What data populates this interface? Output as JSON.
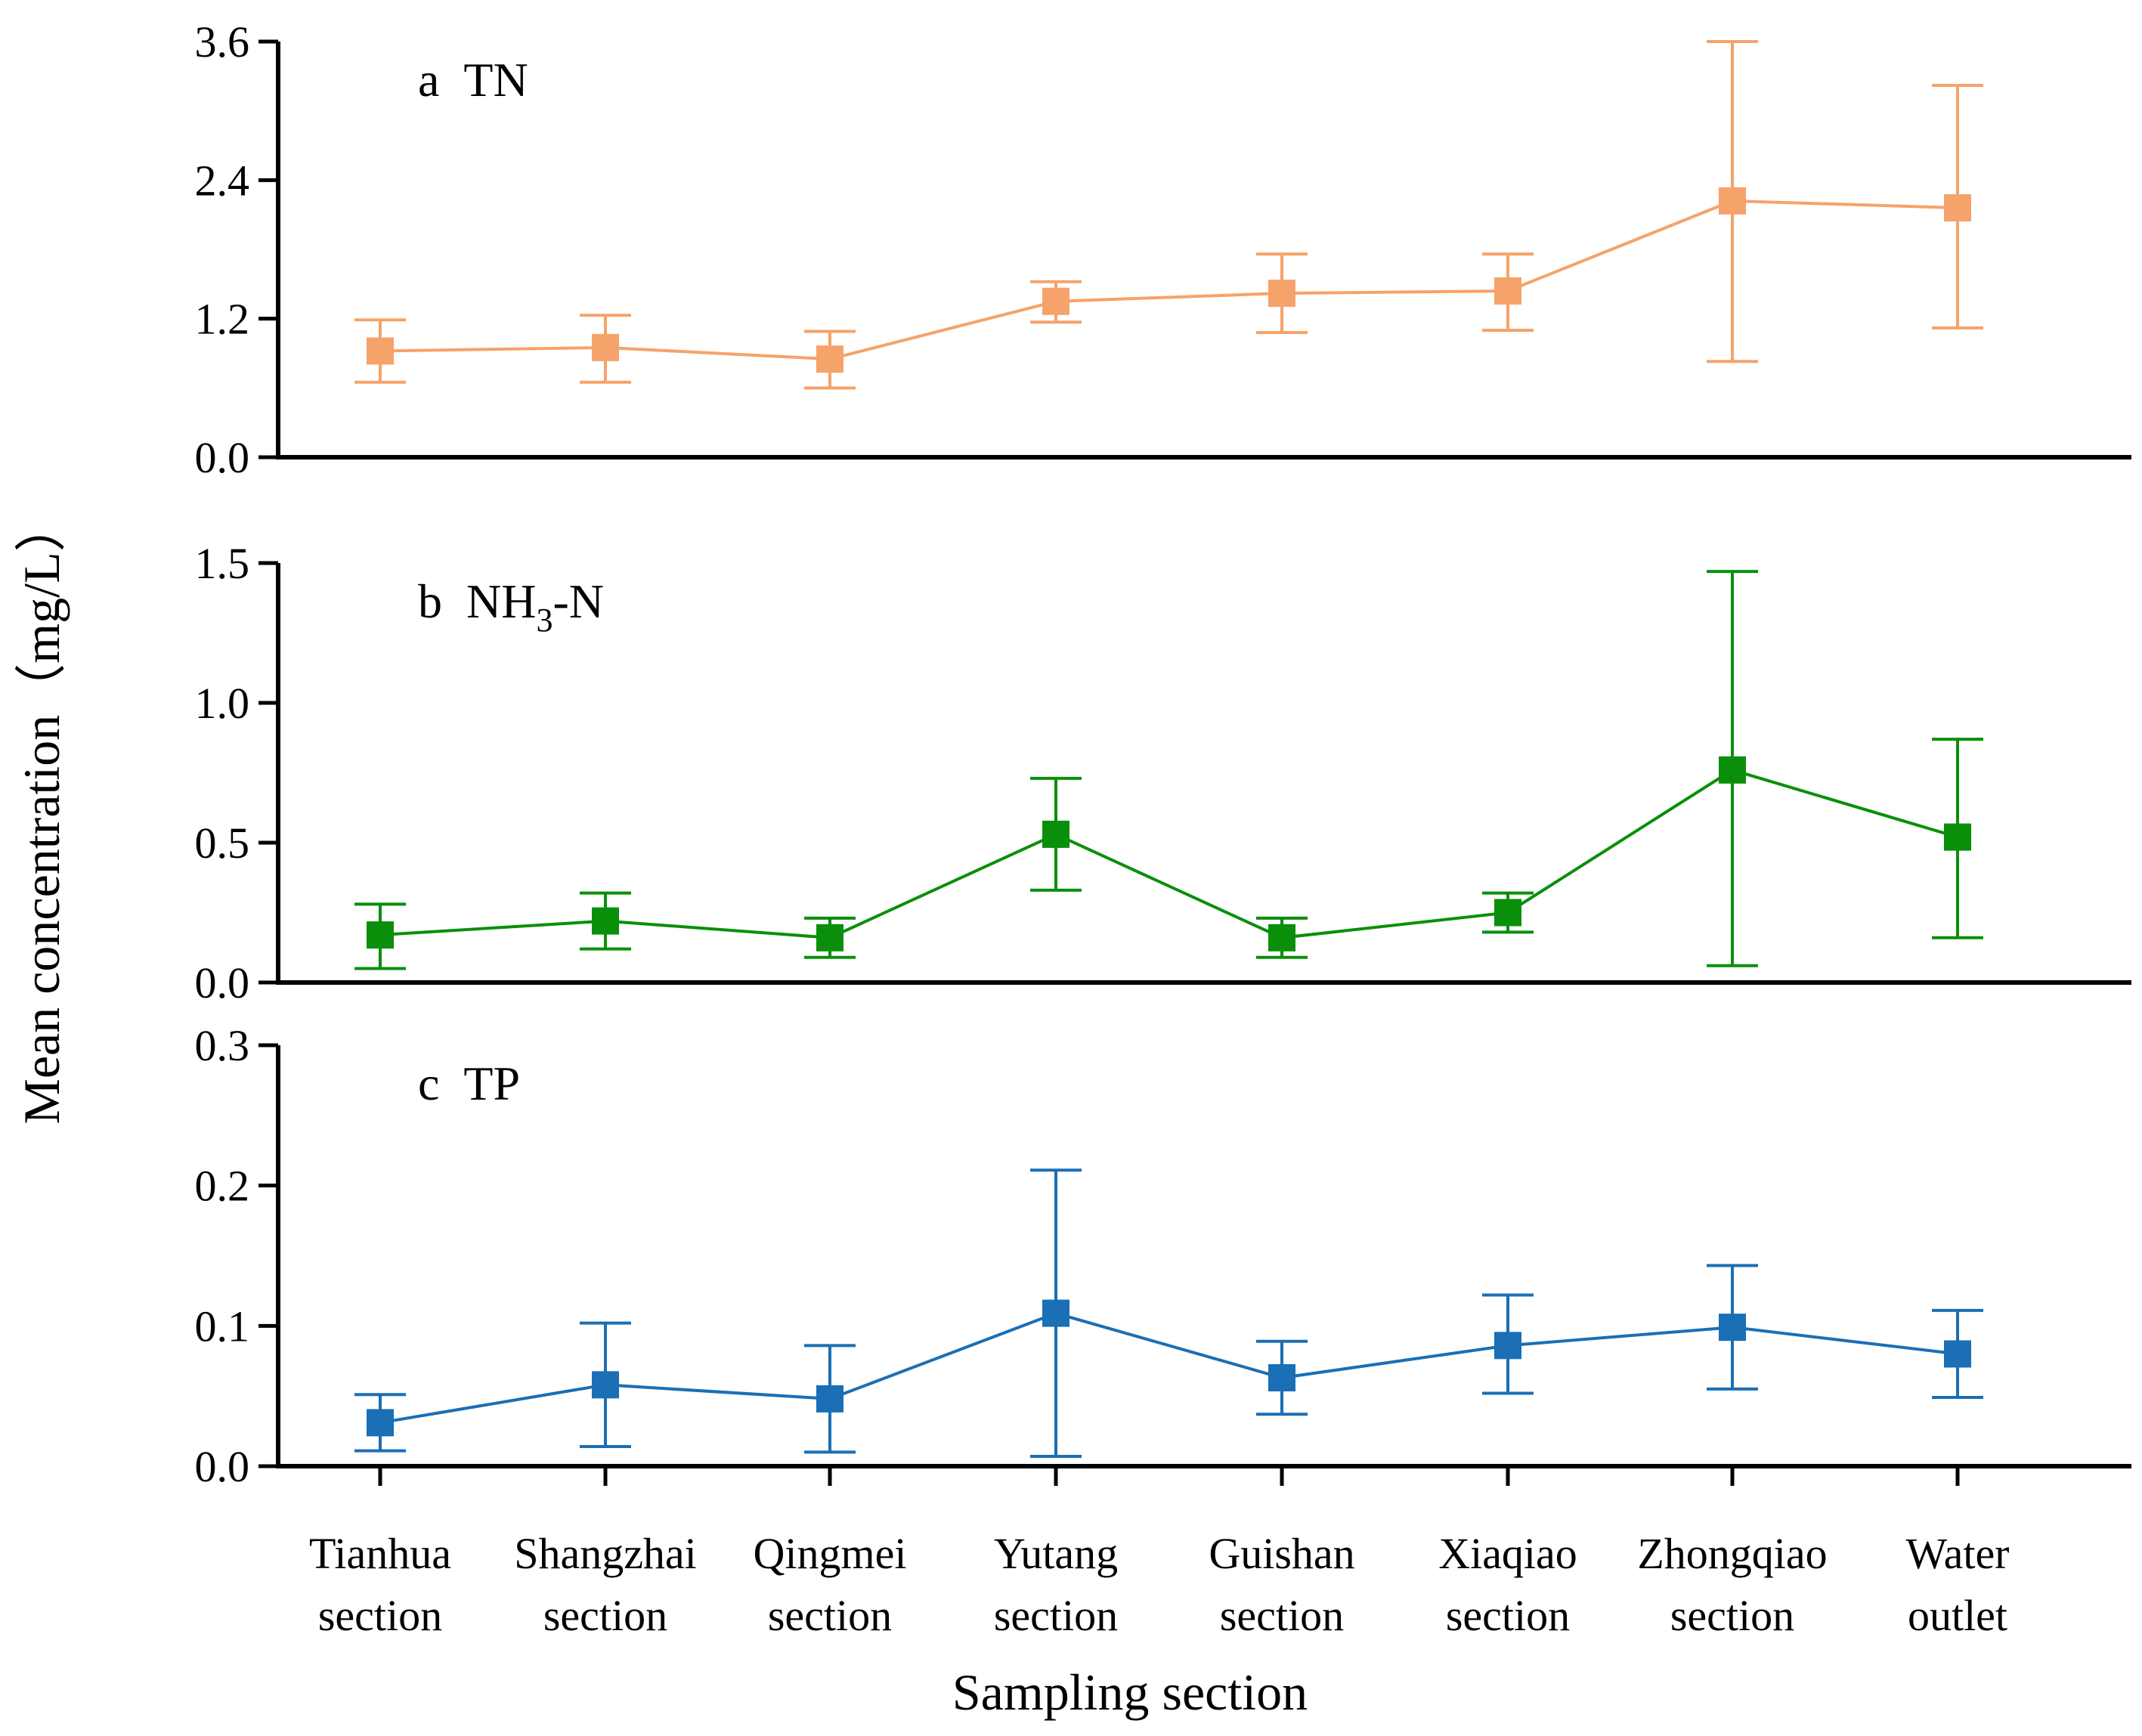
{
  "chart_data": {
    "type": "line",
    "ylabel": "Mean concentration（mg/L）",
    "xlabel": "Sampling section",
    "categories": [
      [
        "Tianhua",
        "section"
      ],
      [
        "Shangzhai",
        "section"
      ],
      [
        "Qingmei",
        "section"
      ],
      [
        "Yutang",
        "section"
      ],
      [
        "Guishan",
        "section"
      ],
      [
        "Xiaqiao",
        "section"
      ],
      [
        "Zhongqiao",
        "section"
      ],
      [
        "Water",
        "outlet"
      ]
    ],
    "panels": [
      {
        "id": "a",
        "title_letter": "a",
        "title_main": "TN",
        "title_sub": "",
        "title_suffix": "",
        "color": "#F5A36A",
        "ylim": [
          0,
          3.6
        ],
        "yticks": [
          "0.0",
          "1.2",
          "2.4",
          "3.6"
        ],
        "values": [
          0.92,
          0.95,
          0.85,
          1.35,
          1.42,
          1.44,
          2.22,
          2.16
        ],
        "err_low": [
          0.65,
          0.65,
          0.6,
          1.17,
          1.08,
          1.1,
          0.83,
          1.12
        ],
        "err_high": [
          1.19,
          1.23,
          1.09,
          1.52,
          1.76,
          1.76,
          3.6,
          3.22
        ]
      },
      {
        "id": "b",
        "title_letter": "b",
        "title_main": "NH",
        "title_sub": "3",
        "title_suffix": "-N",
        "color": "#0A8F0A",
        "ylim": [
          0,
          1.5
        ],
        "yticks": [
          "0.0",
          "0.5",
          "1.0",
          "1.5"
        ],
        "values": [
          0.17,
          0.22,
          0.16,
          0.53,
          0.16,
          0.25,
          0.76,
          0.52
        ],
        "err_low": [
          0.05,
          0.12,
          0.09,
          0.33,
          0.09,
          0.18,
          0.06,
          0.16
        ],
        "err_high": [
          0.28,
          0.32,
          0.23,
          0.73,
          0.23,
          0.32,
          1.47,
          0.87
        ]
      },
      {
        "id": "c",
        "title_letter": "c",
        "title_main": "TP",
        "title_sub": "",
        "title_suffix": "",
        "color": "#1A6FB5",
        "ylim": [
          0,
          0.3
        ],
        "yticks": [
          "0.0",
          "0.1",
          "0.2",
          "0.3"
        ],
        "values": [
          0.031,
          0.058,
          0.048,
          0.109,
          0.063,
          0.086,
          0.099,
          0.08
        ],
        "err_low": [
          0.011,
          0.014,
          0.01,
          0.007,
          0.037,
          0.052,
          0.055,
          0.049
        ],
        "err_high": [
          0.051,
          0.102,
          0.086,
          0.211,
          0.089,
          0.122,
          0.143,
          0.111
        ]
      }
    ]
  }
}
